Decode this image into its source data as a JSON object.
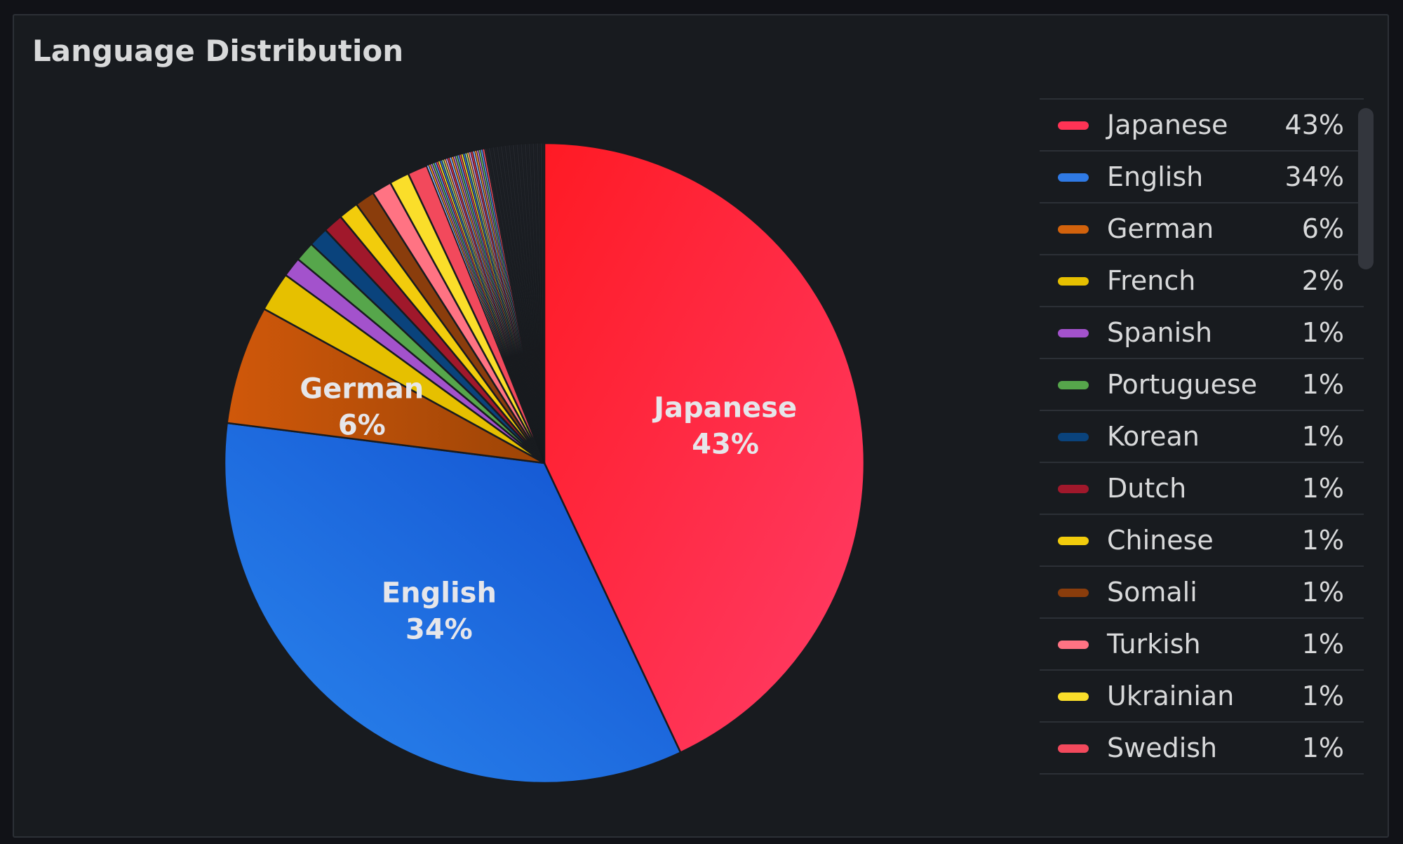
{
  "panel": {
    "title": "Language Distribution"
  },
  "chart_data": {
    "type": "pie",
    "title": "Language Distribution",
    "legend_position": "right",
    "slices": [
      {
        "label": "Japanese",
        "value": 43,
        "color": "#ff3355"
      },
      {
        "label": "English",
        "value": 34,
        "color": "#2f7ae5"
      },
      {
        "label": "German",
        "value": 6,
        "color": "#d2620c"
      },
      {
        "label": "French",
        "value": 2,
        "color": "#e6c000"
      },
      {
        "label": "Spanish",
        "value": 1,
        "color": "#a352cc"
      },
      {
        "label": "Portuguese",
        "value": 1,
        "color": "#56a64b"
      },
      {
        "label": "Korean",
        "value": 1,
        "color": "#0a437c"
      },
      {
        "label": "Dutch",
        "value": 1,
        "color": "#a0182b"
      },
      {
        "label": "Chinese",
        "value": 1,
        "color": "#f2cc0c"
      },
      {
        "label": "Somali",
        "value": 1,
        "color": "#8a3d0c"
      },
      {
        "label": "Turkish",
        "value": 1,
        "color": "#ff7383"
      },
      {
        "label": "Ukrainian",
        "value": 1,
        "color": "#fade2a"
      },
      {
        "label": "Swedish",
        "value": 1,
        "color": "#f2495c"
      }
    ],
    "slice_labels": [
      "Japanese",
      "English",
      "German"
    ],
    "legend_labels": [
      "43%",
      "34%",
      "6%",
      "2%",
      "1%",
      "1%",
      "1%",
      "1%",
      "1%",
      "1%",
      "1%",
      "1%",
      "1%"
    ],
    "other_value": 6
  }
}
